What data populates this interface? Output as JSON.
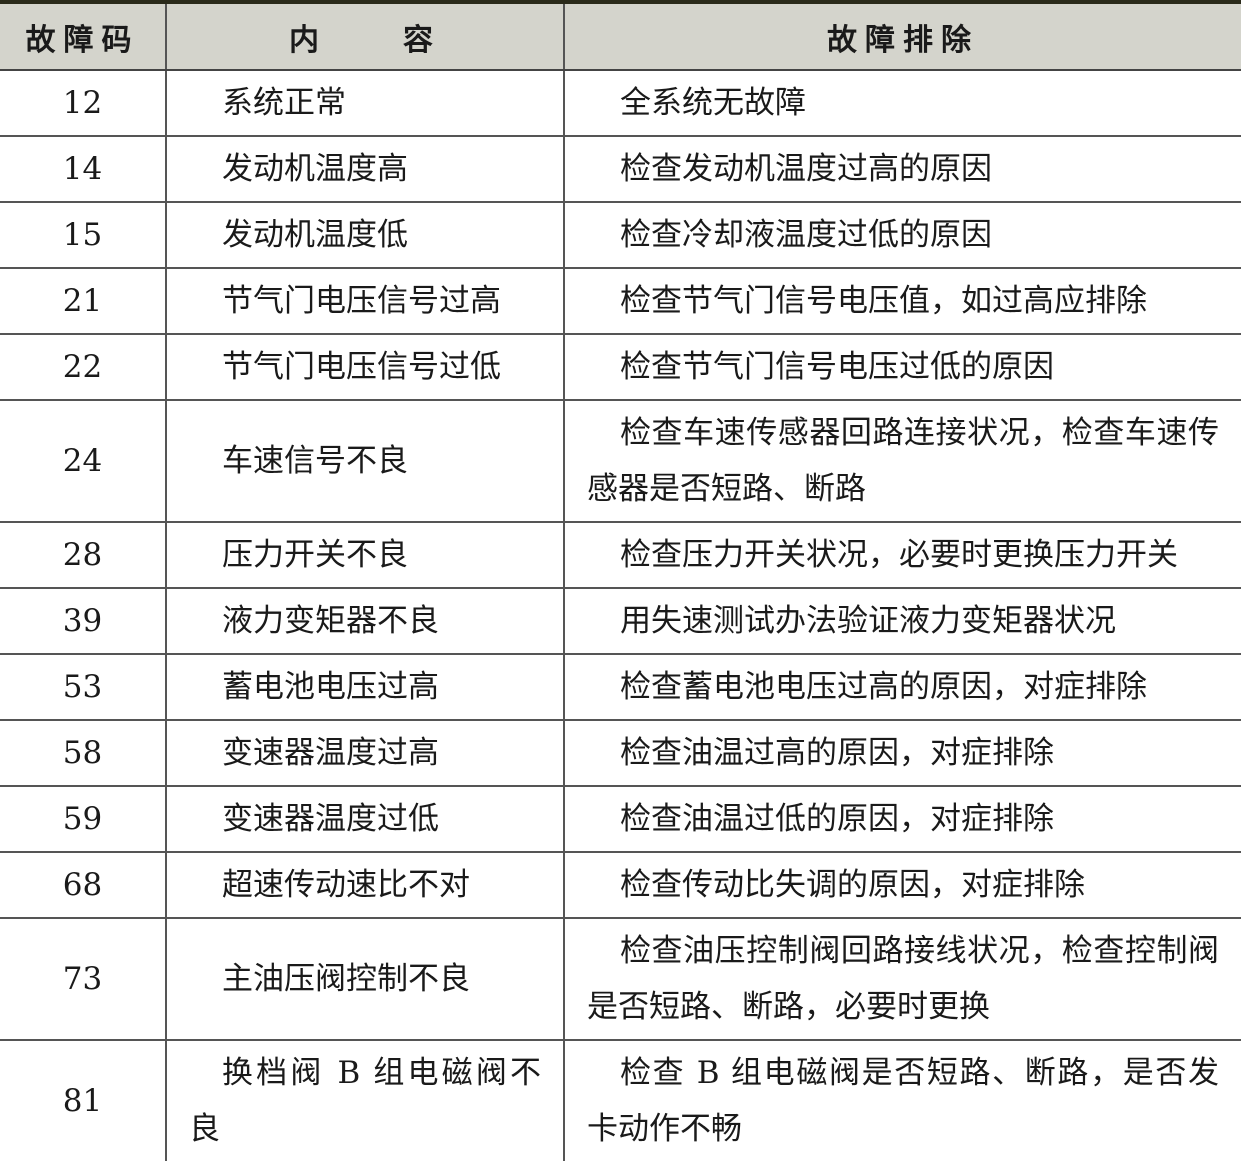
{
  "header": {
    "code": "故障码",
    "content": "内　　容",
    "remedy": "故障排除"
  },
  "rows": [
    {
      "code": "12",
      "content": "系统正常",
      "remedy": "全系统无故障"
    },
    {
      "code": "14",
      "content": "发动机温度高",
      "remedy": "检查发动机温度过高的原因"
    },
    {
      "code": "15",
      "content": "发动机温度低",
      "remedy": "检查冷却液温度过低的原因"
    },
    {
      "code": "21",
      "content": "节气门电压信号过高",
      "remedy": "检查节气门信号电压值，如过高应排除"
    },
    {
      "code": "22",
      "content": "节气门电压信号过低",
      "remedy": "检查节气门信号电压过低的原因"
    },
    {
      "code": "24",
      "content": "车速信号不良",
      "remedy": "检查车速传感器回路连接状况，检查车速传感器是否短路、断路"
    },
    {
      "code": "28",
      "content": "压力开关不良",
      "remedy": "检查压力开关状况，必要时更换压力开关"
    },
    {
      "code": "39",
      "content": "液力变矩器不良",
      "remedy": "用失速测试办法验证液力变矩器状况"
    },
    {
      "code": "53",
      "content": "蓄电池电压过高",
      "remedy": "检查蓄电池电压过高的原因，对症排除"
    },
    {
      "code": "58",
      "content": "变速器温度过高",
      "remedy": "检查油温过高的原因，对症排除"
    },
    {
      "code": "59",
      "content": "变速器温度过低",
      "remedy": "检查油温过低的原因，对症排除"
    },
    {
      "code": "68",
      "content": "超速传动速比不对",
      "remedy": "检查传动比失调的原因，对症排除"
    },
    {
      "code": "73",
      "content": "主油压阀控制不良",
      "remedy": "检查油压控制阀回路接线状况，检查控制阀是否短路、断路，必要时更换"
    },
    {
      "code": "81",
      "content": "换档阀 B 组电磁阀不良",
      "remedy": "检查 B 组电磁阀是否短路、断路，是否发卡动作不畅"
    }
  ]
}
